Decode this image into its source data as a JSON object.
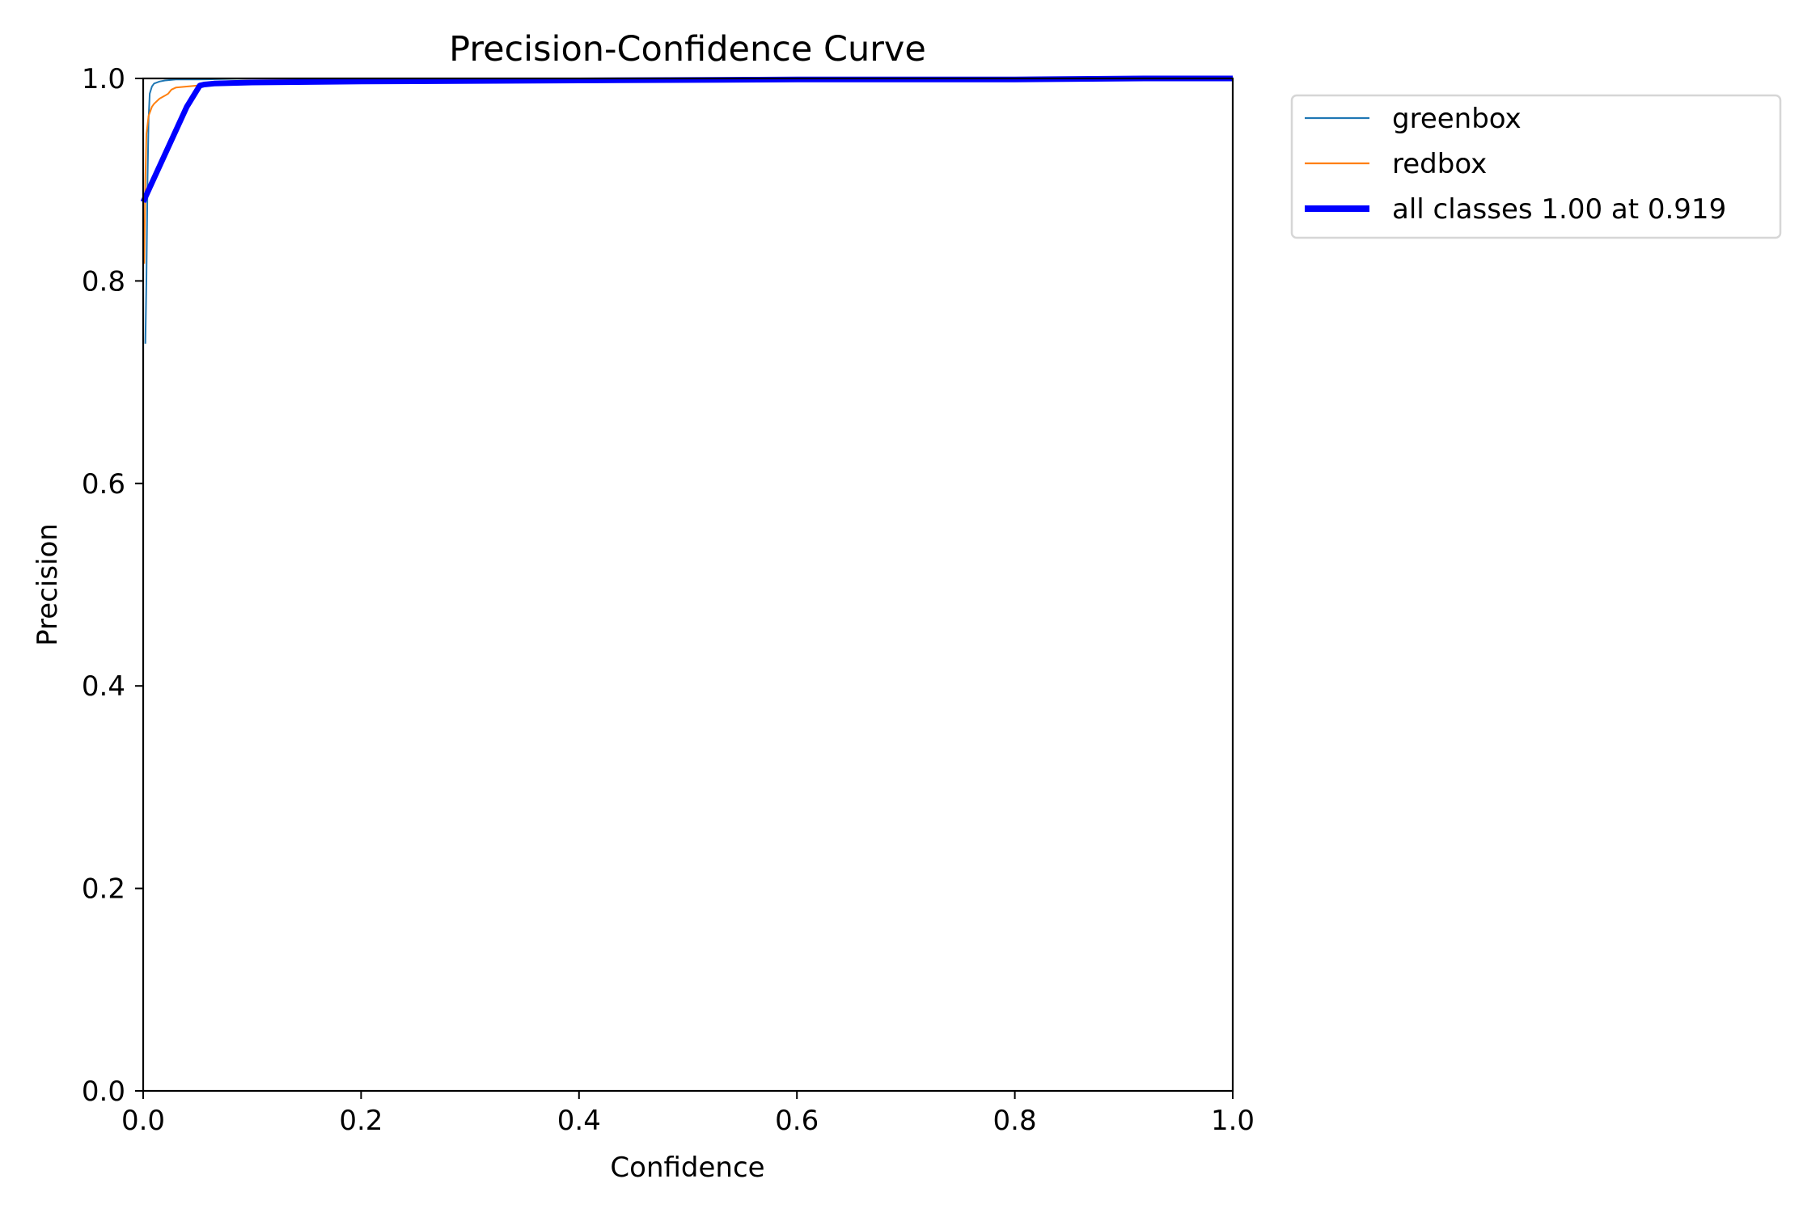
{
  "chart_data": {
    "type": "line",
    "title": "Precision-Confidence Curve",
    "xlabel": "Confidence",
    "ylabel": "Precision",
    "xlim": [
      0.0,
      1.0
    ],
    "ylim": [
      0.0,
      1.0
    ],
    "xticks": [
      "0.0",
      "0.2",
      "0.4",
      "0.6",
      "0.8",
      "1.0"
    ],
    "yticks": [
      "0.0",
      "0.2",
      "0.4",
      "0.6",
      "0.8",
      "1.0"
    ],
    "grid": false,
    "legend_position": "outside upper right",
    "series": [
      {
        "name": "greenbox",
        "color": "#1f77b4",
        "line_width": 2,
        "x": [
          0.002,
          0.003,
          0.004,
          0.005,
          0.006,
          0.008,
          0.01,
          0.015,
          0.02,
          0.03,
          0.05,
          0.1,
          0.2,
          0.4,
          0.6,
          0.8,
          1.0
        ],
        "y": [
          0.738,
          0.8,
          0.9,
          0.96,
          0.985,
          0.992,
          0.995,
          0.997,
          0.998,
          0.999,
          0.999,
          1.0,
          1.0,
          1.0,
          1.0,
          1.0,
          1.0
        ]
      },
      {
        "name": "redbox",
        "color": "#ff7f0e",
        "line_width": 2,
        "x": [
          0.001,
          0.002,
          0.003,
          0.005,
          0.008,
          0.01,
          0.015,
          0.02,
          0.023,
          0.026,
          0.03,
          0.04,
          0.05,
          0.055,
          0.07,
          0.1,
          0.2,
          0.4,
          0.6,
          0.8,
          1.0
        ],
        "y": [
          0.817,
          0.9,
          0.945,
          0.963,
          0.972,
          0.975,
          0.98,
          0.983,
          0.985,
          0.989,
          0.991,
          0.992,
          0.993,
          0.995,
          0.997,
          0.998,
          0.999,
          1.0,
          1.0,
          1.0,
          1.0
        ]
      },
      {
        "name": "all classes 1.00 at 0.919",
        "color": "#0000ff",
        "line_width": 7,
        "x": [
          0.0,
          0.02,
          0.04,
          0.052,
          0.056,
          0.065,
          0.1,
          0.2,
          0.4,
          0.6,
          0.8,
          0.919,
          1.0
        ],
        "y": [
          0.878,
          0.925,
          0.972,
          0.993,
          0.994,
          0.995,
          0.996,
          0.997,
          0.998,
          0.999,
          0.999,
          1.0,
          1.0
        ]
      }
    ],
    "annotations": []
  },
  "legend": {
    "items": [
      {
        "label": "greenbox",
        "color": "#1f77b4"
      },
      {
        "label": "redbox",
        "color": "#ff7f0e"
      },
      {
        "label": "all classes 1.00 at 0.919",
        "color": "#0000ff"
      }
    ]
  }
}
